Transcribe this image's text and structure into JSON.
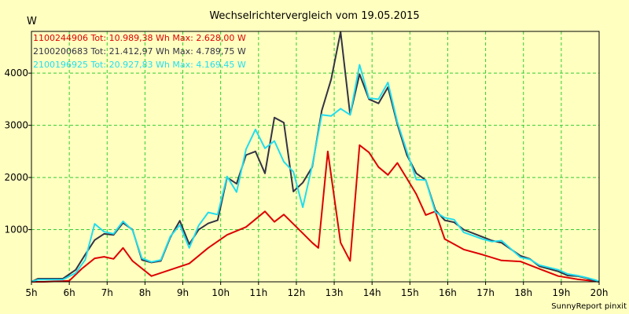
{
  "chart_data": {
    "type": "line",
    "title": "Wechselrichtervergleich vom 19.05.2015",
    "ylabel": "W",
    "xlim": [
      5,
      20
    ],
    "ylim": [
      0,
      4800
    ],
    "x_ticks": [
      "5h",
      "6h",
      "7h",
      "8h",
      "9h",
      "10h",
      "11h",
      "12h",
      "13h",
      "14h",
      "15h",
      "16h",
      "17h",
      "18h",
      "19h",
      "20h"
    ],
    "y_ticks": [
      1000,
      2000,
      3000,
      4000
    ],
    "grid": true,
    "legend_position": "top-left",
    "series": [
      {
        "name": "1100244906",
        "legend": "1100244906 Tot: 10.989,38 Wh Max: 2.628,00 W",
        "color": "#dd0000",
        "x": [
          5.0,
          5.33,
          6.0,
          6.33,
          6.67,
          6.92,
          7.17,
          7.42,
          7.67,
          8.17,
          8.67,
          9.17,
          9.67,
          10.17,
          10.67,
          10.92,
          11.17,
          11.42,
          11.67,
          12.17,
          12.42,
          12.58,
          12.83,
          13.17,
          13.42,
          13.67,
          13.92,
          14.17,
          14.42,
          14.67,
          14.92,
          15.17,
          15.42,
          15.67,
          15.92,
          16.42,
          16.92,
          17.42,
          17.92,
          18.42,
          18.92,
          19.42,
          19.92,
          20.0
        ],
        "y": [
          0,
          0,
          20,
          250,
          450,
          480,
          440,
          650,
          400,
          110,
          230,
          350,
          650,
          900,
          1050,
          1200,
          1350,
          1150,
          1290,
          930,
          750,
          650,
          2500,
          750,
          400,
          2620,
          2480,
          2200,
          2050,
          2280,
          1980,
          1680,
          1280,
          1350,
          820,
          620,
          520,
          410,
          390,
          250,
          110,
          50,
          10,
          0
        ]
      },
      {
        "name": "2100200683",
        "legend": "2100200683 Tot: 21.412,97 Wh Max: 4.789,75 W",
        "color": "#333344",
        "x": [
          5.0,
          5.17,
          5.83,
          6.17,
          6.42,
          6.67,
          6.92,
          7.17,
          7.42,
          7.67,
          7.92,
          8.17,
          8.42,
          8.67,
          8.92,
          9.17,
          9.42,
          9.67,
          9.92,
          10.17,
          10.42,
          10.67,
          10.92,
          11.17,
          11.42,
          11.67,
          11.92,
          12.17,
          12.42,
          12.67,
          12.92,
          13.17,
          13.42,
          13.67,
          13.92,
          14.17,
          14.42,
          14.67,
          14.92,
          15.17,
          15.42,
          15.67,
          15.92,
          16.17,
          16.42,
          16.92,
          17.17,
          17.42,
          17.92,
          18.17,
          18.42,
          18.92,
          19.17,
          19.42,
          19.67,
          19.92,
          20.0
        ],
        "y": [
          0,
          60,
          60,
          230,
          520,
          800,
          920,
          900,
          1130,
          1000,
          420,
          370,
          400,
          850,
          1170,
          720,
          1000,
          1120,
          1180,
          2000,
          1880,
          2430,
          2500,
          2080,
          3150,
          3050,
          1730,
          1900,
          2200,
          3280,
          3880,
          4790,
          3200,
          3980,
          3500,
          3420,
          3730,
          3020,
          2430,
          2080,
          1950,
          1380,
          1180,
          1140,
          1000,
          860,
          790,
          750,
          500,
          440,
          300,
          200,
          120,
          110,
          70,
          10,
          0
        ]
      },
      {
        "name": "2100196925",
        "legend": "2100196925 Tot: 20.927,83 Wh Max: 4.169,45 W",
        "color": "#22ddee",
        "x": [
          5.0,
          5.17,
          5.83,
          6.17,
          6.42,
          6.67,
          6.92,
          7.17,
          7.42,
          7.67,
          7.92,
          8.17,
          8.42,
          8.67,
          8.92,
          9.17,
          9.42,
          9.67,
          9.92,
          10.17,
          10.42,
          10.67,
          10.92,
          11.17,
          11.42,
          11.67,
          11.92,
          12.17,
          12.42,
          12.67,
          12.92,
          13.17,
          13.42,
          13.67,
          13.92,
          14.17,
          14.42,
          14.67,
          14.92,
          15.17,
          15.42,
          15.67,
          15.92,
          16.17,
          16.42,
          16.92,
          17.17,
          17.42,
          17.92,
          18.17,
          18.42,
          18.92,
          19.17,
          19.42,
          19.67,
          19.92,
          20.0
        ],
        "y": [
          0,
          40,
          40,
          170,
          420,
          1110,
          960,
          920,
          1160,
          990,
          450,
          380,
          420,
          870,
          1090,
          650,
          1080,
          1330,
          1290,
          2020,
          1720,
          2540,
          2920,
          2560,
          2700,
          2300,
          2110,
          1430,
          2230,
          3200,
          3180,
          3320,
          3200,
          4160,
          3520,
          3500,
          3820,
          3060,
          2500,
          1960,
          1950,
          1340,
          1230,
          1190,
          950,
          820,
          770,
          790,
          470,
          430,
          320,
          230,
          150,
          120,
          80,
          30,
          0
        ]
      }
    ]
  },
  "footer": "SunnyReport pinxit"
}
